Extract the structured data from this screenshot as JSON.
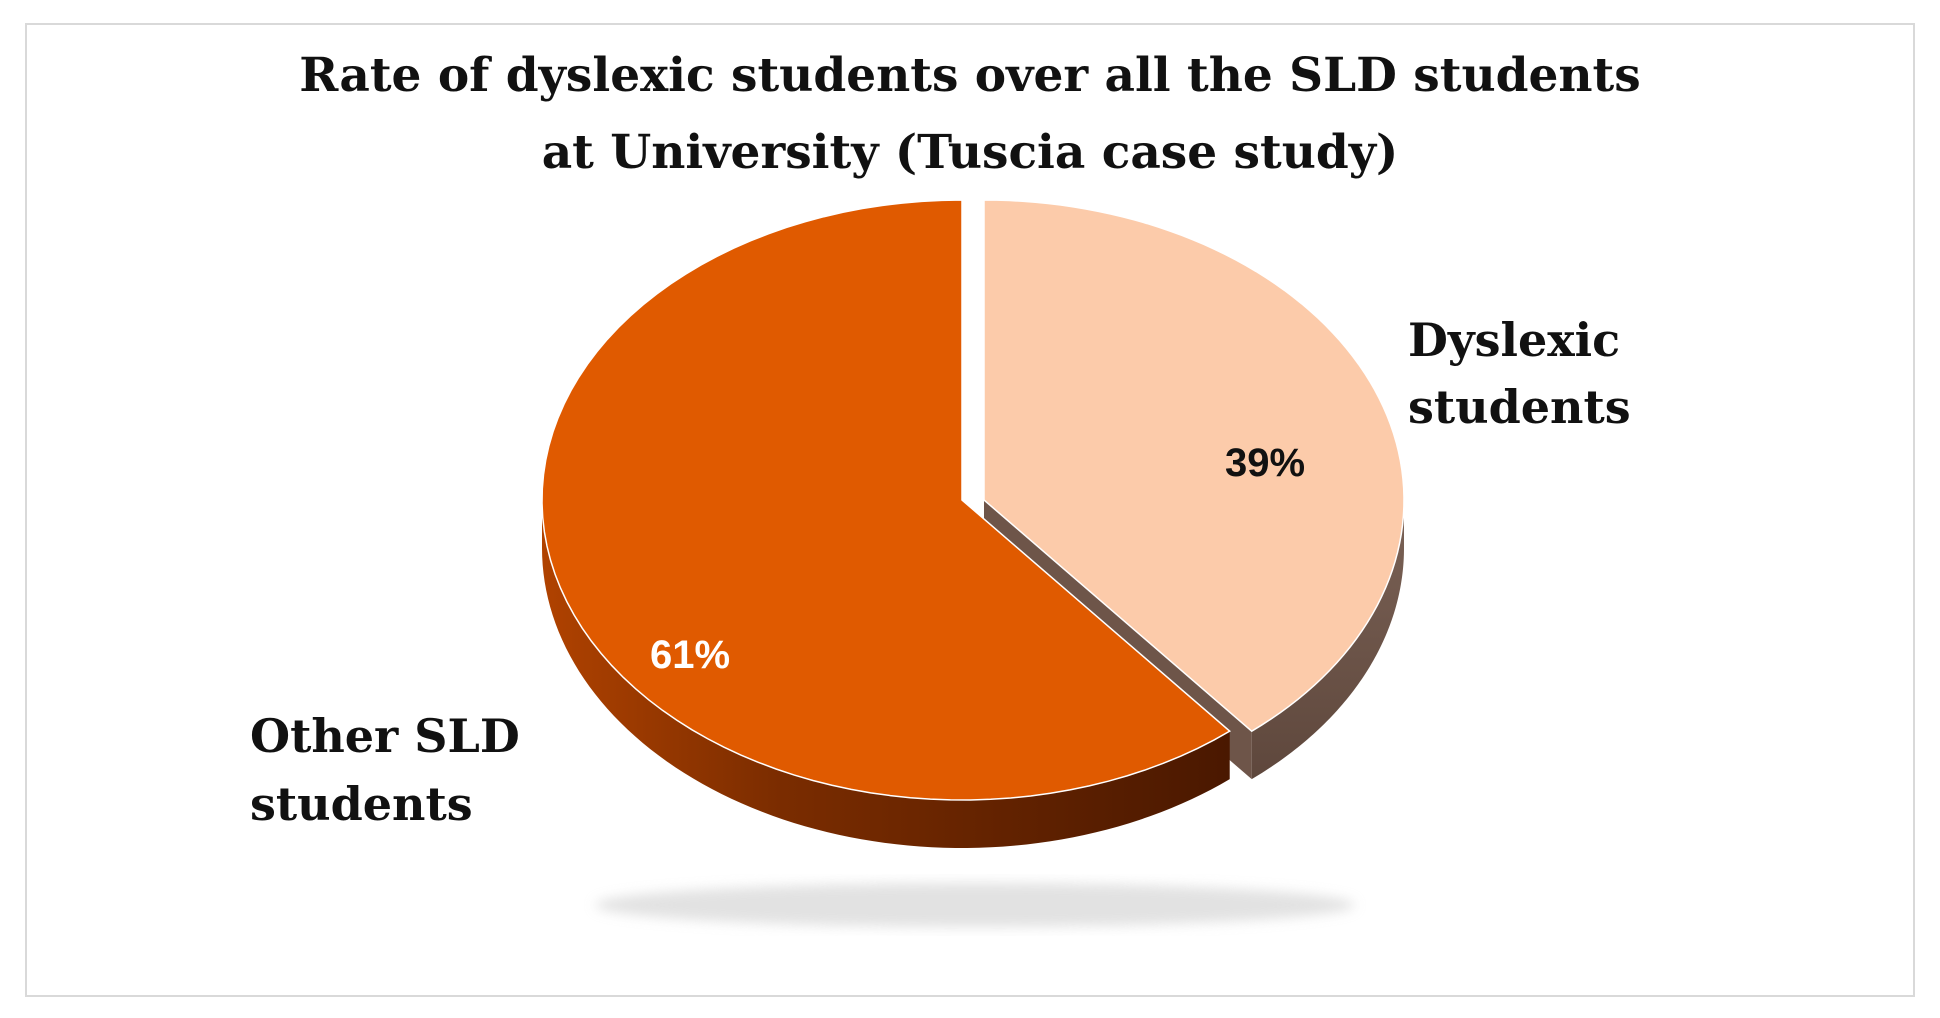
{
  "chart_data": {
    "type": "pie",
    "title": [
      "Rate of dyslexic students over all the SLD students",
      "at University (Tuscia case study)"
    ],
    "slices": [
      {
        "label_lines": [
          "Dyslexic",
          "students"
        ],
        "value": 39,
        "value_label": "39%",
        "color": "#FCCBAA",
        "side_color": "#6E5549",
        "label_color": "#111111",
        "exploded": true
      },
      {
        "label_lines": [
          "Other SLD",
          "students"
        ],
        "value": 61,
        "value_label": "61%",
        "color": "#E05A00",
        "side_color": "#5A1E00",
        "label_color": "#ffffff",
        "exploded": false
      }
    ],
    "style": "3d-exploded-pie",
    "legend": "none"
  }
}
